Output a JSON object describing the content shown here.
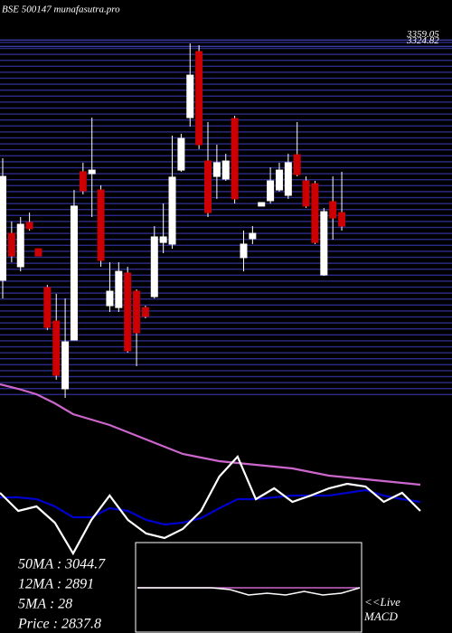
{
  "chart_data": [
    {
      "type": "candlestick",
      "title": "BSE 500147 munafasutra.pro",
      "open": [
        2064,
        2317,
        2137,
        2376,
        2234,
        2025,
        1844,
        1479,
        1742,
        2649,
        2639,
        2551,
        1927,
        1917,
        2103,
        2005,
        1917,
        1976,
        2268,
        2259,
        2658,
        2941,
        3297,
        2707,
        2624,
        2610,
        2936,
        2186,
        2288,
        2464,
        2493,
        2551,
        2522,
        2741,
        2600,
        2585,
        2093,
        2488,
        2429
      ],
      "high": [
        2722,
        2381,
        2405,
        2429,
        2234,
        2039,
        1991,
        1966,
        2551,
        2698,
        2941,
        2576,
        2161,
        2161,
        2137,
        2015,
        1927,
        2356,
        2478,
        2844,
        2854,
        3341,
        3331,
        2917,
        2795,
        2746,
        2951,
        2332,
        2356,
        2483,
        2673,
        2698,
        2746,
        2917,
        2624,
        2600,
        2454,
        2624,
        2649
      ],
      "low": [
        1966,
        2161,
        2112,
        2332,
        2195,
        1796,
        1528,
        1430,
        1742,
        2527,
        2405,
        2137,
        1893,
        1893,
        1674,
        1601,
        1859,
        1966,
        2210,
        2234,
        2649,
        2893,
        2771,
        2405,
        2503,
        2600,
        2478,
        2112,
        2259,
        2464,
        2478,
        2542,
        2503,
        2624,
        2454,
        2259,
        2088,
        2283,
        2332
      ],
      "close": [
        2624,
        2195,
        2366,
        2342,
        2195,
        1810,
        1552,
        1732,
        2464,
        2546,
        2658,
        2171,
        2005,
        2112,
        1684,
        1781,
        1869,
        2298,
        2298,
        2620,
        2829,
        3170,
        2795,
        2429,
        2698,
        2707,
        2503,
        2259,
        2317,
        2483,
        2600,
        2658,
        2698,
        2634,
        2464,
        2268,
        2434,
        2400,
        2356
      ],
      "up_color": "#ffffff",
      "down_color": "#cc0000",
      "ylim": [
        1430,
        3380
      ],
      "yticks": [
        3359.05,
        3324.82
      ],
      "grid": true
    },
    {
      "type": "line",
      "ylim": [
        0,
        100
      ],
      "series": [
        {
          "color": "#cc66cc",
          "values": [
            97.5,
            95,
            92,
            87,
            81,
            78,
            75,
            71,
            67,
            63,
            59,
            57,
            55,
            54,
            53,
            52,
            51,
            49,
            47,
            46,
            45,
            44,
            43,
            42
          ]
        },
        {
          "color": "#0000cc",
          "values": [
            35,
            35,
            34,
            30,
            24,
            24,
            29,
            27.5,
            22.5,
            20,
            21,
            23.5,
            29,
            34,
            34,
            35,
            36,
            36,
            36,
            37.5,
            39,
            36,
            34,
            32.5
          ]
        },
        {
          "color": "#ffffff",
          "values": [
            37.5,
            27.5,
            30,
            21,
            4,
            22.5,
            36,
            22.5,
            15,
            12.5,
            17.5,
            27.5,
            46.5,
            57.5,
            34,
            40,
            32.5,
            36,
            40,
            42.5,
            41,
            32.5,
            37.5,
            27.5
          ]
        }
      ],
      "annotations": [
        "50MA : 3044.7",
        "12MA : 2891",
        "5MA : 28",
        "Price  : 2837.8"
      ]
    },
    {
      "type": "line",
      "ylim": [
        -1,
        1
      ],
      "series": [
        {
          "color": "#cc66cc",
          "values": [
            0,
            0,
            0,
            0,
            0,
            0,
            0,
            0,
            0,
            0,
            0,
            0,
            0
          ]
        },
        {
          "color": "#ffffff",
          "values": [
            0,
            0,
            0,
            0,
            0,
            -0.05,
            -0.2,
            -0.15,
            -0.2,
            -0.1,
            -0.2,
            -0.15,
            0
          ]
        }
      ],
      "annotations": [
        "<<Live",
        "MACD"
      ]
    }
  ]
}
